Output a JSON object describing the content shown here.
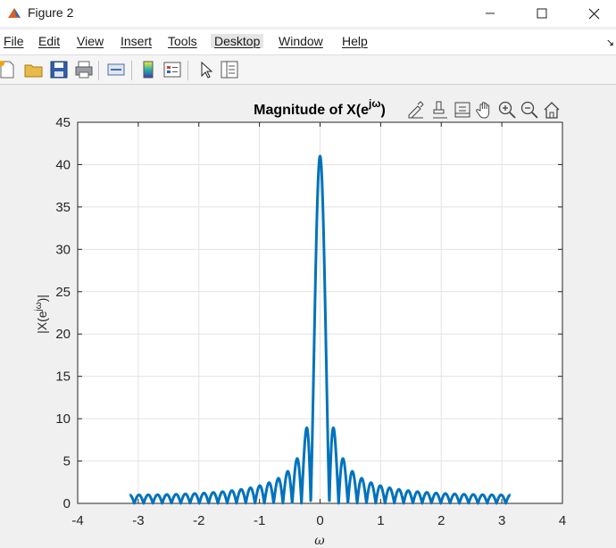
{
  "window": {
    "title": "Figure 2",
    "controls": [
      "minimize",
      "maximize",
      "close"
    ]
  },
  "menubar": {
    "items": [
      {
        "label": "File",
        "name": "menu-file"
      },
      {
        "label": "Edit",
        "name": "menu-edit"
      },
      {
        "label": "View",
        "name": "menu-view"
      },
      {
        "label": "Insert",
        "name": "menu-insert"
      },
      {
        "label": "Tools",
        "name": "menu-tools"
      },
      {
        "label": "Desktop",
        "name": "menu-desktop"
      },
      {
        "label": "Window",
        "name": "menu-window"
      },
      {
        "label": "Help",
        "name": "menu-help"
      }
    ],
    "dock_arrow": "↘"
  },
  "toolbar": {
    "icons": [
      "new-figure-icon",
      "open-file-icon",
      "save-icon",
      "print-icon",
      "link-plot-icon",
      "insert-colorbar-icon",
      "insert-legend-icon",
      "edit-plot-icon",
      "property-inspector-icon"
    ]
  },
  "axes_toolbar": {
    "icons": [
      "brush-icon",
      "data-tips-icon",
      "data-cursor-icon",
      "pan-icon",
      "zoom-in-icon",
      "zoom-out-icon",
      "restore-view-icon"
    ]
  },
  "chart_data": {
    "type": "line",
    "title_main": "Magnitude of X(e",
    "title_sup": "jω",
    "title_end": ")",
    "xlabel": "ω",
    "ylabel_main": "|X(e",
    "ylabel_sup": "jω",
    "ylabel_end": ")|",
    "xlim": [
      -4,
      4
    ],
    "ylim": [
      0,
      45
    ],
    "xticks": [
      -4,
      -3,
      -2,
      -1,
      0,
      1,
      2,
      3,
      4
    ],
    "yticks": [
      0,
      5,
      10,
      15,
      20,
      25,
      30,
      35,
      40,
      45
    ],
    "grid": true,
    "line_color": "#0072BD",
    "series": [
      {
        "description": "Dirichlet-kernel magnitude |sin(41ω/2)/sin(ω/2)| sampled over [-π, π]",
        "peak": {
          "x": 0,
          "y": 41
        },
        "x_range": [
          -3.1416,
          3.1416
        ],
        "N": 41
      }
    ]
  }
}
